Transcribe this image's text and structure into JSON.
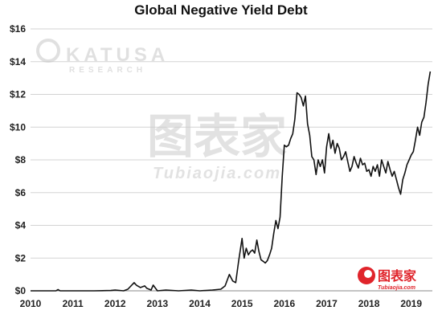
{
  "watermarks": {
    "top_brand": "KATUSA",
    "top_brand_sub": "RESEARCH",
    "center_cn": "图表家",
    "center_url": "Tubiaojia.com",
    "corner_cn": "图表家",
    "corner_url": "Tubiaojia.com"
  },
  "colors": {
    "line": "#111111",
    "grid": "#d3d3d3",
    "watermark": "#c8c8c8",
    "logo_red": "#e0242b"
  },
  "chart_data": {
    "type": "line",
    "title": "Global Negative Yield Debt",
    "xlabel": "",
    "ylabel": "",
    "x_ticks": [
      "2010",
      "2011",
      "2012",
      "2013",
      "2014",
      "2015",
      "2016",
      "2017",
      "2018",
      "2019"
    ],
    "y_ticks": [
      "$0",
      "$2",
      "$4",
      "$6",
      "$8",
      "$10",
      "$12",
      "$14",
      "$16"
    ],
    "xlim": [
      2010.0,
      2019.5
    ],
    "ylim": [
      0,
      16
    ],
    "grid": true,
    "series": [
      {
        "name": "",
        "x": [
          2010.0,
          2010.3,
          2010.6,
          2010.65,
          2010.7,
          2011.0,
          2011.5,
          2011.9,
          2012.0,
          2012.2,
          2012.3,
          2012.45,
          2012.5,
          2012.6,
          2012.7,
          2012.75,
          2012.85,
          2012.9,
          2013.0,
          2013.2,
          2013.5,
          2013.8,
          2014.0,
          2014.3,
          2014.5,
          2014.6,
          2014.7,
          2014.78,
          2014.85,
          2014.92,
          2015.0,
          2015.05,
          2015.1,
          2015.15,
          2015.2,
          2015.25,
          2015.3,
          2015.35,
          2015.4,
          2015.45,
          2015.5,
          2015.55,
          2015.6,
          2015.65,
          2015.7,
          2015.75,
          2015.8,
          2015.85,
          2015.9,
          2015.95,
          2016.0,
          2016.05,
          2016.1,
          2016.15,
          2016.2,
          2016.25,
          2016.3,
          2016.35,
          2016.4,
          2016.45,
          2016.5,
          2016.55,
          2016.6,
          2016.65,
          2016.7,
          2016.75,
          2016.8,
          2016.85,
          2016.9,
          2016.95,
          2017.0,
          2017.05,
          2017.1,
          2017.15,
          2017.2,
          2017.25,
          2017.3,
          2017.35,
          2017.4,
          2017.45,
          2017.5,
          2017.55,
          2017.6,
          2017.65,
          2017.7,
          2017.75,
          2017.8,
          2017.85,
          2017.9,
          2017.95,
          2018.0,
          2018.05,
          2018.1,
          2018.15,
          2018.2,
          2018.25,
          2018.3,
          2018.35,
          2018.4,
          2018.45,
          2018.5,
          2018.55,
          2018.6,
          2018.65,
          2018.7,
          2018.75,
          2018.8,
          2018.85,
          2018.9,
          2018.95,
          2019.0,
          2019.05,
          2019.1,
          2019.15,
          2019.2,
          2019.25,
          2019.3,
          2019.35,
          2019.4,
          2019.45
        ],
        "values": [
          0.0,
          0.0,
          0.0,
          0.08,
          0.0,
          0.0,
          0.0,
          0.02,
          0.05,
          0.0,
          0.1,
          0.5,
          0.35,
          0.2,
          0.3,
          0.15,
          0.05,
          0.35,
          0.0,
          0.05,
          0.0,
          0.05,
          0.0,
          0.05,
          0.1,
          0.3,
          1.0,
          0.6,
          0.5,
          1.8,
          3.2,
          2.0,
          2.6,
          2.2,
          2.4,
          2.5,
          2.3,
          3.1,
          2.4,
          1.9,
          1.8,
          1.7,
          1.85,
          2.2,
          2.6,
          3.5,
          4.3,
          3.8,
          4.5,
          7.0,
          8.9,
          8.8,
          8.9,
          9.3,
          9.6,
          10.5,
          12.1,
          12.0,
          11.8,
          11.3,
          11.9,
          10.2,
          9.5,
          8.2,
          8.0,
          7.1,
          8.0,
          7.6,
          8.0,
          7.2,
          8.8,
          9.6,
          8.7,
          9.2,
          8.4,
          9.0,
          8.7,
          8.0,
          8.2,
          8.5,
          7.9,
          7.3,
          7.6,
          8.2,
          7.8,
          7.5,
          8.1,
          7.7,
          7.8,
          7.3,
          7.4,
          7.0,
          7.6,
          7.3,
          7.7,
          7.0,
          8.0,
          7.6,
          7.2,
          7.9,
          7.4,
          7.0,
          7.3,
          6.8,
          6.3,
          5.9,
          6.8,
          7.2,
          7.7,
          8.0,
          8.3,
          8.5,
          9.2,
          10.0,
          9.5,
          10.3,
          10.6,
          11.5,
          12.6,
          13.4
        ]
      }
    ]
  }
}
